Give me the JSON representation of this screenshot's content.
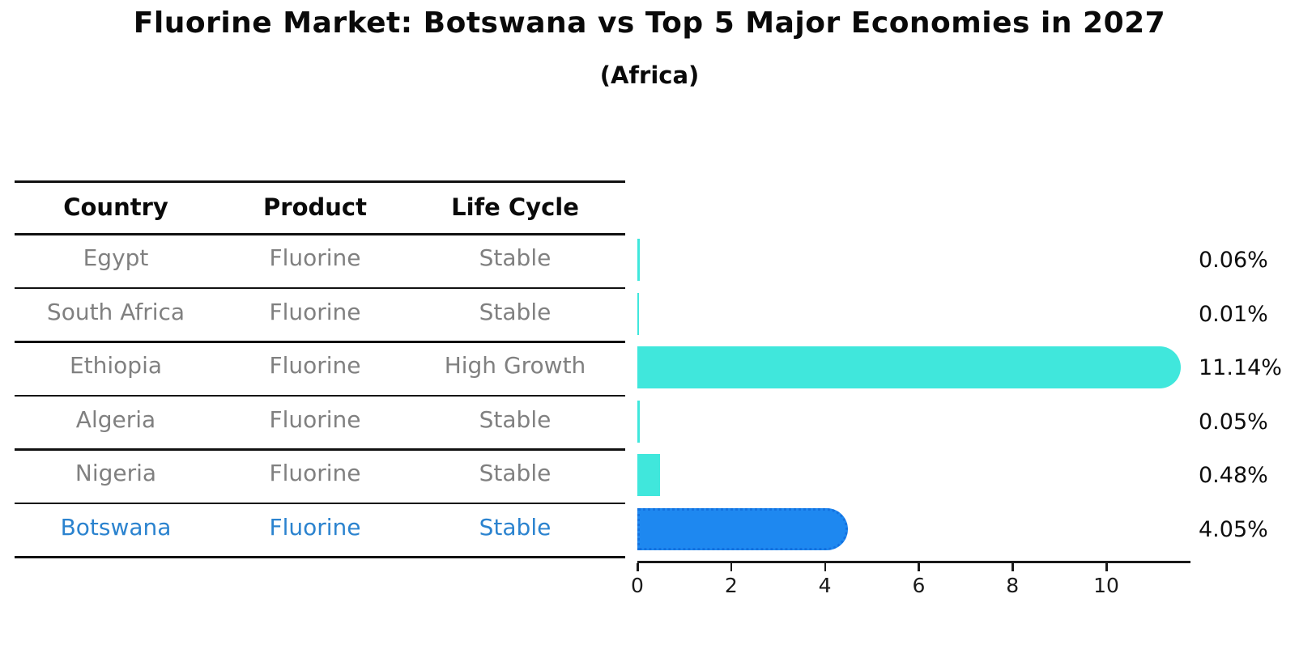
{
  "title": "Fluorine Market: Botswana vs Top 5 Major Economies in 2027",
  "subtitle": "(Africa)",
  "table": {
    "headers": [
      "Country",
      "Product",
      "Life Cycle"
    ],
    "rows": [
      {
        "country": "Egypt",
        "product": "Fluorine",
        "life_cycle": "Stable",
        "highlight": false
      },
      {
        "country": "South Africa",
        "product": "Fluorine",
        "life_cycle": "Stable",
        "highlight": false
      },
      {
        "country": "Ethiopia",
        "product": "Fluorine",
        "life_cycle": "High Growth",
        "highlight": false
      },
      {
        "country": "Algeria",
        "product": "Fluorine",
        "life_cycle": "Stable",
        "highlight": false
      },
      {
        "country": "Nigeria",
        "product": "Fluorine",
        "life_cycle": "Stable",
        "highlight": false
      },
      {
        "country": "Botswana",
        "product": "Fluorine",
        "life_cycle": "Stable",
        "highlight": true
      }
    ]
  },
  "chart_data": {
    "type": "bar",
    "orientation": "horizontal",
    "title": "Fluorine Market: Botswana vs Top 5 Major Economies in 2027",
    "subtitle": "(Africa)",
    "categories": [
      "Egypt",
      "South Africa",
      "Ethiopia",
      "Algeria",
      "Nigeria",
      "Botswana"
    ],
    "values": [
      0.06,
      0.01,
      11.14,
      0.05,
      0.48,
      4.05
    ],
    "value_labels": [
      "0.06%",
      "0.01%",
      "11.14%",
      "0.05%",
      "0.48%",
      "4.05%"
    ],
    "x_ticks": [
      0,
      2,
      4,
      6,
      8,
      10
    ],
    "xlim": [
      0,
      11.8
    ],
    "xlabel": "",
    "ylabel": "",
    "grid": false,
    "legend": false,
    "highlight_index": 5
  },
  "colors": {
    "bar": "#40E7DC",
    "highlight_bar": "#1E88F0",
    "highlight_bar_edge": "#1472E0",
    "highlight_text": "#2B83CF",
    "table_text": "#808080",
    "heading_text": "#0A0A0A",
    "axis": "#1A1A1A"
  }
}
